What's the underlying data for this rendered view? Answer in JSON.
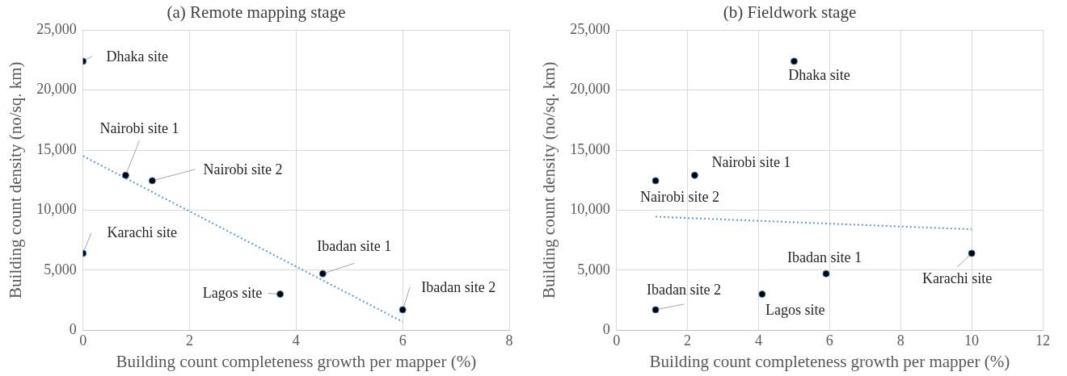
{
  "chart_data": [
    {
      "type": "scatter",
      "title": "(a) Remote mapping stage",
      "xlabel": "Building count completeness growth per mapper (%)",
      "ylabel": "Building count density (no/sq. km)",
      "xlim": [
        0,
        8
      ],
      "xticks": [
        0,
        2,
        4,
        6,
        8
      ],
      "ylim": [
        0,
        25000
      ],
      "yticks": [
        {
          "value": 0,
          "label": "0"
        },
        {
          "value": 5000,
          "label": "5,000"
        },
        {
          "value": 10000,
          "label": "10,000"
        },
        {
          "value": 15000,
          "label": "15,000"
        },
        {
          "value": 20000,
          "label": "20,000"
        },
        {
          "value": 25000,
          "label": "25,000"
        }
      ],
      "grid": true,
      "legend": false,
      "series": [
        {
          "color": "#000000",
          "marker": "circle",
          "x": [
            0,
            0.8,
            1.3,
            0,
            4.5,
            3.7,
            6
          ],
          "values": [
            22400,
            12900,
            12450,
            6400,
            4700,
            3000,
            1700
          ]
        },
        {
          "type": "line",
          "color": "#5b9bd5",
          "marker": "none",
          "line_style": "dotted",
          "x": [
            0,
            6
          ],
          "values": [
            14500,
            700
          ]
        }
      ],
      "annotations": [
        {
          "text": "Dhaka site",
          "x": 0,
          "y": 22400
        },
        {
          "text": "Nairobi site 1",
          "x": 0.8,
          "y": 12900
        },
        {
          "text": "Nairobi site 2",
          "x": 1.3,
          "y": 12450
        },
        {
          "text": "Karachi site",
          "x": 0,
          "y": 6400
        },
        {
          "text": "Ibadan site 1",
          "x": 4.5,
          "y": 4700
        },
        {
          "text": "Lagos site",
          "x": 3.7,
          "y": 3000
        },
        {
          "text": "Ibadan site 2",
          "x": 6,
          "y": 1700
        }
      ]
    },
    {
      "type": "scatter",
      "title": "(b) Fieldwork stage",
      "xlabel": "Building count completeness growth per mapper (%)",
      "ylabel": "Building count density (no/sq. km)",
      "xlim": [
        0,
        12
      ],
      "xticks": [
        0,
        2,
        4,
        6,
        8,
        10,
        12
      ],
      "ylim": [
        0,
        25000
      ],
      "yticks": [
        {
          "value": 0,
          "label": "0"
        },
        {
          "value": 5000,
          "label": "5,000"
        },
        {
          "value": 10000,
          "label": "10,000"
        },
        {
          "value": 15000,
          "label": "15,000"
        },
        {
          "value": 20000,
          "label": "20,000"
        },
        {
          "value": 25000,
          "label": "25,000"
        }
      ],
      "grid": true,
      "legend": false,
      "series": [
        {
          "color": "#000000",
          "marker": "circle",
          "x": [
            5,
            2.2,
            1.1,
            10,
            5.9,
            4.1,
            1.1
          ],
          "values": [
            22400,
            12900,
            12450,
            6400,
            4700,
            3000,
            1700
          ]
        },
        {
          "type": "line",
          "color": "#5b9bd5",
          "marker": "none",
          "line_style": "dotted",
          "x": [
            1.1,
            10
          ],
          "values": [
            9450,
            8400
          ]
        }
      ],
      "annotations": [
        {
          "text": "Dhaka site",
          "x": 5,
          "y": 22400
        },
        {
          "text": "Nairobi site 1",
          "x": 2.2,
          "y": 12900
        },
        {
          "text": "Nairobi site 2",
          "x": 1.1,
          "y": 12450
        },
        {
          "text": "Karachi site",
          "x": 10,
          "y": 6400
        },
        {
          "text": "Ibadan site 1",
          "x": 5.9,
          "y": 4700
        },
        {
          "text": "Lagos site",
          "x": 4.1,
          "y": 3000
        },
        {
          "text": "Ibadan site 2",
          "x": 1.1,
          "y": 1700
        }
      ]
    }
  ]
}
